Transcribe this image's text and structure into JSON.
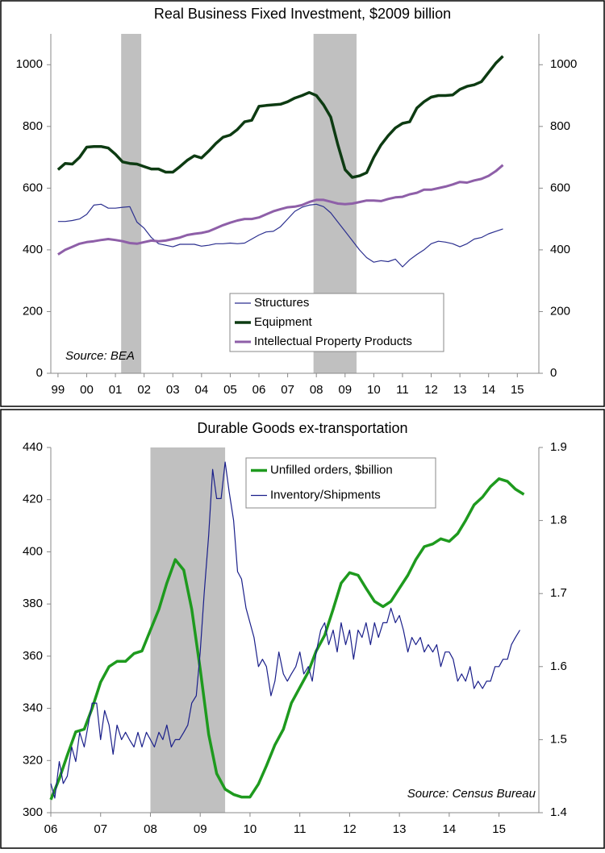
{
  "chart_data": [
    {
      "type": "line",
      "title": "Real Business Fixed Investment, $2009 billion",
      "annotations": [
        "Source: BEA"
      ],
      "legend": "lower center",
      "shaded": [
        [
          2001.2,
          2001.9
        ],
        [
          2007.9,
          2009.4
        ]
      ],
      "x": [
        1999,
        1999.25,
        1999.5,
        1999.75,
        2000,
        2000.25,
        2000.5,
        2000.75,
        2001,
        2001.25,
        2001.5,
        2001.75,
        2002,
        2002.25,
        2002.5,
        2002.75,
        2003,
        2003.25,
        2003.5,
        2003.75,
        2004,
        2004.25,
        2004.5,
        2004.75,
        2005,
        2005.25,
        2005.5,
        2005.75,
        2006,
        2006.25,
        2006.5,
        2006.75,
        2007,
        2007.25,
        2007.5,
        2007.75,
        2008,
        2008.25,
        2008.5,
        2008.75,
        2009,
        2009.25,
        2009.5,
        2009.75,
        2010,
        2010.25,
        2010.5,
        2010.75,
        2011,
        2011.25,
        2011.5,
        2011.75,
        2012,
        2012.25,
        2012.5,
        2012.75,
        2013,
        2013.25,
        2013.5,
        2013.75,
        2014,
        2014.25,
        2014.5
      ],
      "xlim": [
        1998.75,
        2015.75
      ],
      "xticks": [
        {
          "value": 1999,
          "label": "99"
        },
        {
          "value": 2000,
          "label": "00"
        },
        {
          "value": 2001,
          "label": "01"
        },
        {
          "value": 2002,
          "label": "02"
        },
        {
          "value": 2003,
          "label": "03"
        },
        {
          "value": 2004,
          "label": "04"
        },
        {
          "value": 2005,
          "label": "05"
        },
        {
          "value": 2006,
          "label": "06"
        },
        {
          "value": 2007,
          "label": "07"
        },
        {
          "value": 2008,
          "label": "08"
        },
        {
          "value": 2009,
          "label": "09"
        },
        {
          "value": 2010,
          "label": "10"
        },
        {
          "value": 2011,
          "label": "11"
        },
        {
          "value": 2012,
          "label": "12"
        },
        {
          "value": 2013,
          "label": "13"
        },
        {
          "value": 2014,
          "label": "14"
        },
        {
          "value": 2015,
          "label": "15"
        }
      ],
      "ylim": [
        0,
        1100
      ],
      "yticks": [
        0,
        200,
        400,
        600,
        800,
        1000
      ],
      "y2lim": [
        0,
        1100
      ],
      "y2ticks": [
        0,
        200,
        400,
        600,
        800,
        1000
      ],
      "series": [
        {
          "name": "Structures",
          "color": "#2b2f8f",
          "linewidth": 1.2,
          "values": [
            492,
            492,
            495,
            500,
            515,
            545,
            548,
            535,
            535,
            538,
            540,
            490,
            470,
            440,
            420,
            415,
            410,
            418,
            418,
            418,
            412,
            415,
            420,
            420,
            422,
            420,
            422,
            435,
            448,
            458,
            460,
            475,
            500,
            525,
            538,
            545,
            548,
            540,
            520,
            490,
            460,
            430,
            400,
            375,
            360,
            365,
            362,
            370,
            345,
            368,
            385,
            400,
            420,
            428,
            425,
            420,
            410,
            420,
            435,
            440,
            452,
            460,
            468
          ]
        },
        {
          "name": "Equipment",
          "color": "#0d3b12",
          "linewidth": 3.5,
          "values": [
            660,
            680,
            678,
            700,
            733,
            735,
            735,
            730,
            710,
            685,
            680,
            678,
            670,
            662,
            662,
            652,
            652,
            670,
            690,
            705,
            698,
            720,
            745,
            765,
            772,
            790,
            815,
            820,
            865,
            868,
            870,
            872,
            880,
            892,
            900,
            910,
            900,
            870,
            830,
            740,
            660,
            635,
            640,
            650,
            700,
            740,
            770,
            795,
            810,
            815,
            860,
            880,
            895,
            900,
            900,
            902,
            920,
            930,
            935,
            945,
            975,
            1005,
            1028
          ]
        },
        {
          "name": "Intellectual Property Products",
          "color": "#8e5fa8",
          "linewidth": 3,
          "values": [
            385,
            400,
            410,
            420,
            425,
            428,
            432,
            435,
            432,
            428,
            422,
            420,
            425,
            430,
            428,
            430,
            435,
            440,
            448,
            452,
            455,
            460,
            470,
            480,
            488,
            495,
            500,
            500,
            505,
            515,
            525,
            532,
            538,
            540,
            545,
            555,
            562,
            562,
            556,
            550,
            548,
            550,
            555,
            560,
            560,
            558,
            565,
            570,
            572,
            580,
            585,
            595,
            595,
            600,
            605,
            612,
            620,
            618,
            625,
            630,
            640,
            655,
            675
          ]
        }
      ]
    },
    {
      "type": "line",
      "title": "Durable Goods ex-transportation",
      "annotations": [
        "Source: Census Bureau"
      ],
      "legend": "upper center",
      "shaded": [
        [
          2008,
          2009.5
        ]
      ],
      "xlim": [
        2006,
        2015.8
      ],
      "xticks": [
        {
          "value": 2006,
          "label": "06"
        },
        {
          "value": 2007,
          "label": "07"
        },
        {
          "value": 2008,
          "label": "08"
        },
        {
          "value": 2009,
          "label": "09"
        },
        {
          "value": 2010,
          "label": "10"
        },
        {
          "value": 2011,
          "label": "11"
        },
        {
          "value": 2012,
          "label": "12"
        },
        {
          "value": 2013,
          "label": "13"
        },
        {
          "value": 2014,
          "label": "14"
        },
        {
          "value": 2015,
          "label": "15"
        }
      ],
      "ylim": [
        300,
        440
      ],
      "yticks": [
        300,
        320,
        340,
        360,
        380,
        400,
        420,
        440
      ],
      "y2lim": [
        1.4,
        1.9
      ],
      "y2ticks": [
        1.4,
        1.5,
        1.6,
        1.7,
        1.8,
        1.9
      ],
      "series": [
        {
          "name": "Unfilled orders, $billion",
          "color": "#1e9a1e",
          "linewidth": 3.5,
          "x": [
            2006,
            2006.17,
            2006.33,
            2006.5,
            2006.67,
            2006.83,
            2007,
            2007.17,
            2007.33,
            2007.5,
            2007.67,
            2007.83,
            2008,
            2008.17,
            2008.33,
            2008.5,
            2008.67,
            2008.83,
            2009,
            2009.17,
            2009.33,
            2009.5,
            2009.67,
            2009.83,
            2010,
            2010.17,
            2010.33,
            2010.5,
            2010.67,
            2010.83,
            2011,
            2011.17,
            2011.33,
            2011.5,
            2011.67,
            2011.83,
            2012,
            2012.17,
            2012.33,
            2012.5,
            2012.67,
            2012.83,
            2013,
            2013.17,
            2013.33,
            2013.5,
            2013.67,
            2013.83,
            2014,
            2014.17,
            2014.33,
            2014.5,
            2014.67,
            2014.83,
            2015,
            2015.17,
            2015.33,
            2015.5
          ],
          "values": [
            305,
            313,
            322,
            331,
            332,
            340,
            350,
            356,
            358,
            358,
            361,
            362,
            370,
            378,
            388,
            397,
            393,
            378,
            355,
            330,
            315,
            309,
            307,
            306,
            306,
            311,
            318,
            326,
            332,
            342,
            348,
            354,
            362,
            368,
            378,
            388,
            392,
            391,
            386,
            381,
            379,
            381,
            386,
            391,
            397,
            402,
            403,
            405,
            404,
            407,
            412,
            418,
            421,
            425,
            428,
            427,
            424,
            422
          ]
        },
        {
          "name": "Inventory/Shipments",
          "color": "#1a1f8a",
          "linewidth": 1.2,
          "axis": "y2",
          "x": [
            2006,
            2006.08,
            2006.17,
            2006.25,
            2006.33,
            2006.42,
            2006.5,
            2006.58,
            2006.67,
            2006.75,
            2006.83,
            2006.92,
            2007,
            2007.08,
            2007.17,
            2007.25,
            2007.33,
            2007.42,
            2007.5,
            2007.58,
            2007.67,
            2007.75,
            2007.83,
            2007.92,
            2008,
            2008.08,
            2008.17,
            2008.25,
            2008.33,
            2008.42,
            2008.5,
            2008.58,
            2008.67,
            2008.75,
            2008.83,
            2008.92,
            2009,
            2009.08,
            2009.17,
            2009.25,
            2009.33,
            2009.42,
            2009.5,
            2009.58,
            2009.67,
            2009.75,
            2009.83,
            2009.92,
            2010,
            2010.08,
            2010.17,
            2010.25,
            2010.33,
            2010.42,
            2010.5,
            2010.58,
            2010.67,
            2010.75,
            2010.83,
            2010.92,
            2011,
            2011.08,
            2011.17,
            2011.25,
            2011.33,
            2011.42,
            2011.5,
            2011.58,
            2011.67,
            2011.75,
            2011.83,
            2011.92,
            2012,
            2012.08,
            2012.17,
            2012.25,
            2012.33,
            2012.42,
            2012.5,
            2012.58,
            2012.67,
            2012.75,
            2012.83,
            2012.92,
            2013,
            2013.08,
            2013.17,
            2013.25,
            2013.33,
            2013.42,
            2013.5,
            2013.58,
            2013.67,
            2013.75,
            2013.83,
            2013.92,
            2014,
            2014.08,
            2014.17,
            2014.25,
            2014.33,
            2014.42,
            2014.5,
            2014.58,
            2014.67,
            2014.75,
            2014.83,
            2014.92,
            2015,
            2015.08,
            2015.17,
            2015.25,
            2015.33,
            2015.42
          ],
          "values": [
            1.44,
            1.42,
            1.47,
            1.44,
            1.45,
            1.49,
            1.47,
            1.51,
            1.49,
            1.52,
            1.55,
            1.55,
            1.5,
            1.54,
            1.52,
            1.48,
            1.52,
            1.5,
            1.51,
            1.5,
            1.49,
            1.51,
            1.49,
            1.51,
            1.5,
            1.49,
            1.51,
            1.5,
            1.52,
            1.49,
            1.5,
            1.5,
            1.51,
            1.52,
            1.55,
            1.56,
            1.62,
            1.7,
            1.78,
            1.87,
            1.83,
            1.83,
            1.88,
            1.84,
            1.8,
            1.73,
            1.72,
            1.68,
            1.66,
            1.64,
            1.6,
            1.61,
            1.6,
            1.56,
            1.58,
            1.62,
            1.59,
            1.58,
            1.59,
            1.6,
            1.62,
            1.59,
            1.6,
            1.58,
            1.62,
            1.65,
            1.66,
            1.63,
            1.65,
            1.62,
            1.66,
            1.63,
            1.65,
            1.61,
            1.65,
            1.64,
            1.66,
            1.63,
            1.66,
            1.64,
            1.66,
            1.66,
            1.68,
            1.66,
            1.67,
            1.65,
            1.62,
            1.64,
            1.63,
            1.64,
            1.62,
            1.63,
            1.62,
            1.63,
            1.6,
            1.62,
            1.62,
            1.61,
            1.58,
            1.59,
            1.58,
            1.6,
            1.57,
            1.58,
            1.57,
            1.58,
            1.58,
            1.6,
            1.6,
            1.61,
            1.61,
            1.63,
            1.64,
            1.65
          ]
        }
      ]
    }
  ]
}
